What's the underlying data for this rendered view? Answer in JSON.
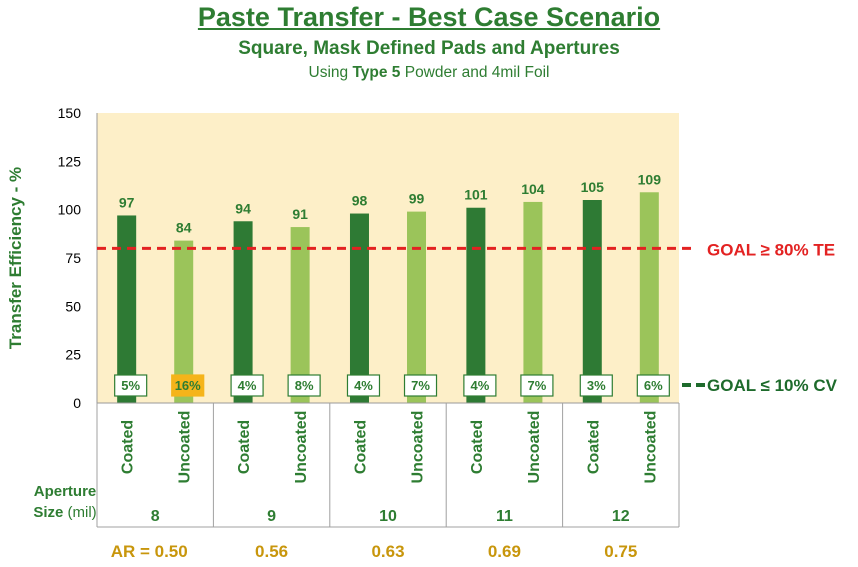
{
  "header": {
    "title": "Paste Transfer - Best Case Scenario",
    "subtitle": "Square, Mask Defined Pads and Apertures",
    "note_prefix": "Using ",
    "note_bold": "Type 5",
    "note_suffix": " Powder and 4mil Foil"
  },
  "colors": {
    "coated": "#2e7a34",
    "uncoated": "#9bc45a",
    "plot_bg": "#fdefc8",
    "text_green": "#2e7d32",
    "goal_te": "#e32222",
    "goal_cv": "#1e6b2c",
    "ar_text": "#c8960c",
    "highlight_cv": "#f5b41a"
  },
  "chart_data": {
    "type": "bar",
    "ylabel": "Transfer Efficiency - %",
    "ylim": [
      0,
      150
    ],
    "yticks": [
      0,
      25,
      50,
      75,
      100,
      125,
      150
    ],
    "groups": [
      "8",
      "9",
      "10",
      "11",
      "12"
    ],
    "series": [
      {
        "name": "Coated",
        "values": [
          97,
          94,
          98,
          101,
          105
        ],
        "cv": [
          "5%",
          "4%",
          "4%",
          "4%",
          "3%"
        ]
      },
      {
        "name": "Uncoated",
        "values": [
          84,
          91,
          99,
          104,
          109
        ],
        "cv": [
          "16%",
          "8%",
          "7%",
          "7%",
          "6%"
        ]
      }
    ],
    "highlighted_cv": {
      "series": "Uncoated",
      "group": "8"
    },
    "goal_te": {
      "value": 80,
      "label": "GOAL ≥ 80% TE"
    },
    "goal_cv": {
      "label": "GOAL ≤ 10% CV"
    },
    "aperture_label_line1": "Aperture",
    "aperture_label_line2_bold": "Size",
    "aperture_label_line2_normal": " (mil)",
    "aspect_ratios": [
      "AR = 0.50",
      "0.56",
      "0.63",
      "0.69",
      "0.75"
    ]
  }
}
